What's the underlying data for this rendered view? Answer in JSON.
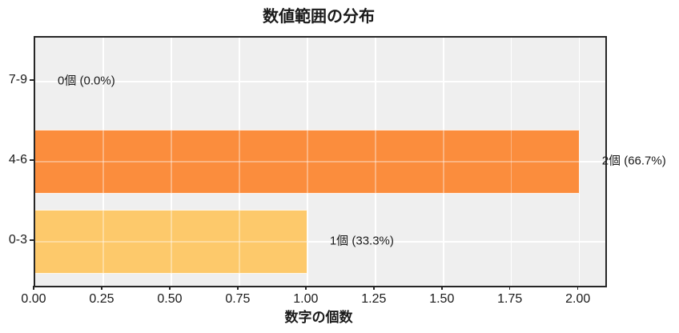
{
  "chart": {
    "title": "数値範囲の分布",
    "xlabel": "数字の個数"
  },
  "chart_data": {
    "type": "bar",
    "orientation": "horizontal",
    "title": "数値範囲の分布",
    "xlabel": "数字の個数",
    "ylabel": "",
    "categories": [
      "7-9",
      "4-6",
      "0-3"
    ],
    "values": [
      0,
      2,
      1
    ],
    "bar_labels": [
      "0個 (0.0%)",
      "2個 (66.7%)",
      "1個 (33.3%)"
    ],
    "bar_colors": [
      null,
      "#FB8D3D",
      "#FDC96B"
    ],
    "xticks": [
      "0.00",
      "0.25",
      "0.50",
      "0.75",
      "1.00",
      "1.25",
      "1.50",
      "1.75",
      "2.00"
    ],
    "xtick_values": [
      0,
      0.25,
      0.5,
      0.75,
      1.0,
      1.25,
      1.5,
      1.75,
      2.0
    ],
    "xlim": [
      0,
      2.095
    ],
    "grid": true,
    "legend": null,
    "colors": {
      "plot_background": "#EFEFEF",
      "figure_background": "#FFFFFF",
      "gridline": "#FFFFFF",
      "spine": "#262626",
      "text": "#1A1A1A"
    }
  }
}
